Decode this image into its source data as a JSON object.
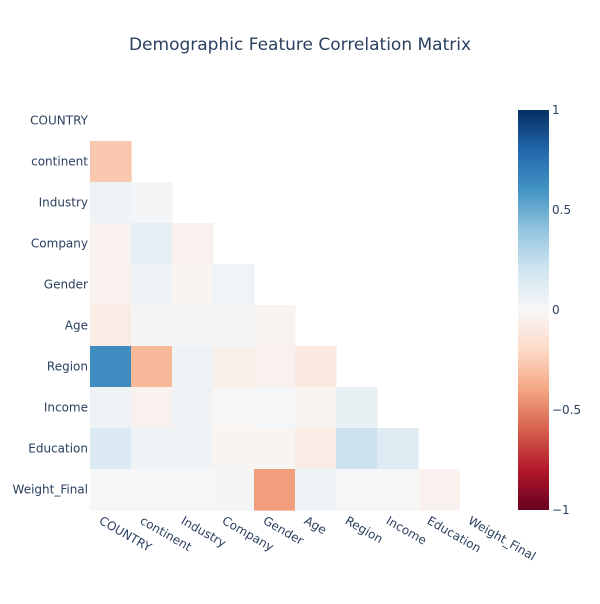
{
  "chart_data": {
    "type": "heatmap",
    "title": "Demographic Feature Correlation Matrix",
    "rows": [
      "COUNTRY",
      "continent",
      "Industry",
      "Company",
      "Gender",
      "Age",
      "Region",
      "Income",
      "Education",
      "Weight_Final"
    ],
    "cols": [
      "COUNTRY",
      "continent",
      "Industry",
      "Company",
      "Gender",
      "Age",
      "Region",
      "Income",
      "Education",
      "Weight_Final"
    ],
    "mask": "upper triangle and diagonal hidden",
    "z": [
      [
        null,
        null,
        null,
        null,
        null,
        null,
        null,
        null,
        null,
        null
      ],
      [
        -0.27,
        null,
        null,
        null,
        null,
        null,
        null,
        null,
        null,
        null
      ],
      [
        0.05,
        0.02,
        null,
        null,
        null,
        null,
        null,
        null,
        null,
        null
      ],
      [
        -0.04,
        0.1,
        -0.04,
        null,
        null,
        null,
        null,
        null,
        null,
        null
      ],
      [
        -0.04,
        0.04,
        -0.02,
        0.03,
        null,
        null,
        null,
        null,
        null,
        null
      ],
      [
        -0.08,
        0.02,
        0.02,
        0.02,
        -0.03,
        null,
        null,
        null,
        null,
        null
      ],
      [
        0.63,
        -0.33,
        0.04,
        -0.06,
        -0.04,
        -0.1,
        null,
        null,
        null,
        null
      ],
      [
        0.05,
        -0.04,
        0.04,
        -0.01,
        0.01,
        -0.03,
        0.08,
        null,
        null,
        null
      ],
      [
        0.15,
        0.05,
        0.04,
        -0.02,
        -0.02,
        -0.08,
        0.22,
        0.13,
        null,
        null
      ],
      [
        0.01,
        0.01,
        0.01,
        0.02,
        -0.42,
        0.05,
        0.01,
        0.01,
        -0.04,
        null
      ]
    ],
    "zmin": -1,
    "zmax": 1,
    "colorscale": "RdBu",
    "colorbar_ticks": [
      {
        "value": 1,
        "label": "1"
      },
      {
        "value": 0.5,
        "label": "0.5"
      },
      {
        "value": 0,
        "label": "0"
      },
      {
        "value": -0.5,
        "label": "−0.5"
      },
      {
        "value": -1,
        "label": "−1"
      }
    ],
    "colors": {
      "text": "#2a3f5f",
      "background": "#ffffff"
    }
  }
}
